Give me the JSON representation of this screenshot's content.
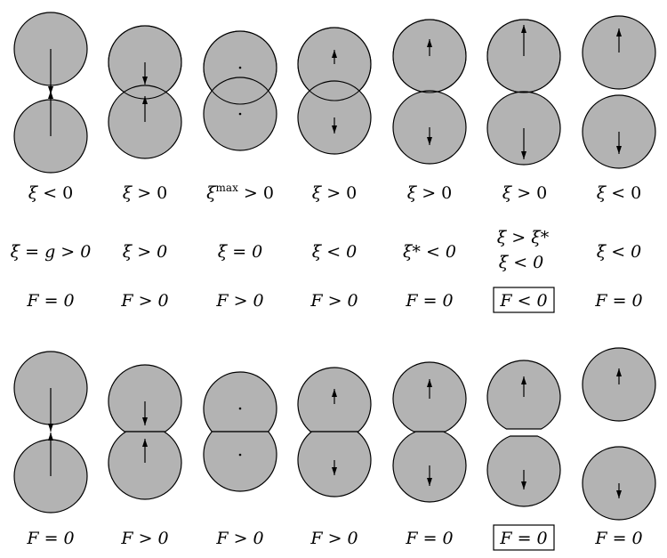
{
  "colors": {
    "disk_fill": "#b3b3b3",
    "stroke": "#000000",
    "background": "#ffffff"
  },
  "top_row": {
    "xi_labels": [
      {
        "sym": "ξ",
        "sup": "",
        "rel": " < 0"
      },
      {
        "sym": "ξ",
        "sup": "",
        "rel": " > 0"
      },
      {
        "sym": "ξ",
        "sup": "max",
        "rel": " > 0"
      },
      {
        "sym": "ξ",
        "sup": "",
        "rel": " > 0"
      },
      {
        "sym": "ξ",
        "sup": "",
        "rel": " > 0"
      },
      {
        "sym": "ξ",
        "sup": "",
        "rel": " > 0"
      },
      {
        "sym": "ξ",
        "sup": "",
        "rel": " < 0"
      }
    ],
    "xidot_labels": [
      [
        "ξ̇ = g > 0"
      ],
      [
        "ξ̇ > 0"
      ],
      [
        "ξ̇ = 0"
      ],
      [
        "ξ̇ < 0"
      ],
      [
        "ξ̇* < 0"
      ],
      [
        "ξ̇ > ξ̇*",
        "ξ̇ < 0"
      ],
      [
        "ξ̇ < 0"
      ]
    ],
    "force_labels": [
      "F = 0",
      "F > 0",
      "F > 0",
      "F > 0",
      "F = 0",
      "F < 0",
      "F = 0"
    ],
    "boxed_index": 5
  },
  "bottom_row": {
    "force_labels": [
      "F = 0",
      "F > 0",
      "F > 0",
      "F > 0",
      "F = 0",
      "F = 0",
      "F = 0"
    ],
    "boxed_index": 5
  }
}
